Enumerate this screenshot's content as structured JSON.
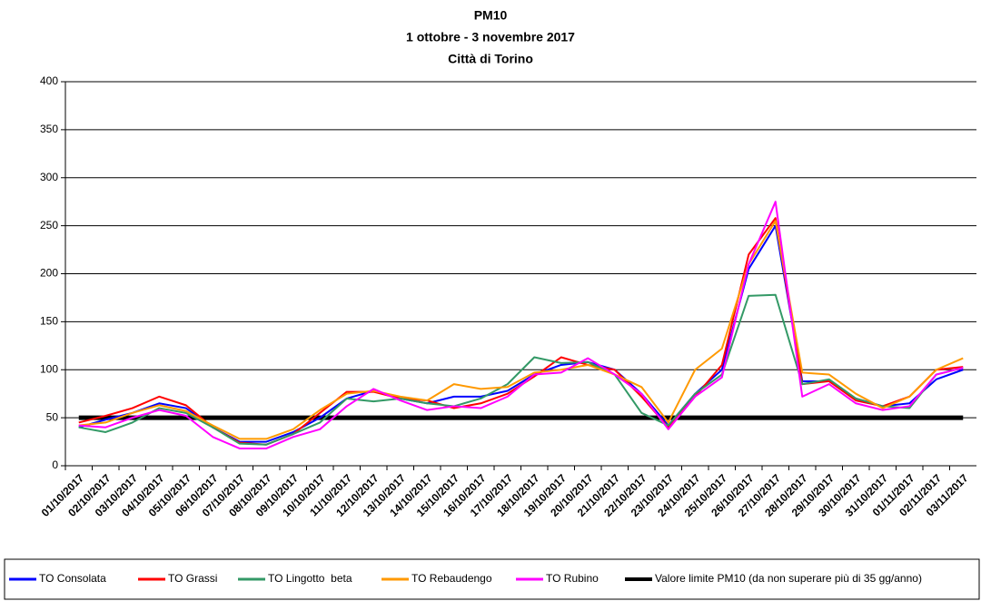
{
  "chart_data": {
    "type": "line",
    "title": "PM10",
    "subtitle": [
      "1 ottobre - 3 novembre 2017",
      "Città di Torino"
    ],
    "categories": [
      "01/10/2017",
      "02/10/2017",
      "03/10/2017",
      "04/10/2017",
      "05/10/2017",
      "06/10/2017",
      "07/10/2017",
      "08/10/2017",
      "09/10/2017",
      "10/10/2017",
      "11/10/2017",
      "12/10/2017",
      "13/10/2017",
      "14/10/2017",
      "15/10/2017",
      "16/10/2017",
      "17/10/2017",
      "18/10/2017",
      "19/10/2017",
      "20/10/2017",
      "21/10/2017",
      "22/10/2017",
      "23/10/2017",
      "24/10/2017",
      "25/10/2017",
      "26/10/2017",
      "27/10/2017",
      "28/10/2017",
      "29/10/2017",
      "30/10/2017",
      "31/10/2017",
      "01/11/2017",
      "02/11/2017",
      "03/11/2017"
    ],
    "series": [
      {
        "name": "TO Consolata",
        "color": "#0000ff",
        "width": 2,
        "values": [
          40,
          48,
          55,
          65,
          60,
          40,
          25,
          25,
          35,
          50,
          70,
          78,
          70,
          65,
          72,
          72,
          78,
          95,
          105,
          108,
          100,
          75,
          42,
          75,
          100,
          205,
          250,
          88,
          88,
          70,
          62,
          65,
          90,
          100
        ]
      },
      {
        "name": "TO Grassi",
        "color": "#ff0000",
        "width": 2,
        "values": [
          45,
          52,
          60,
          72,
          63,
          40,
          24,
          22,
          33,
          55,
          77,
          77,
          70,
          68,
          60,
          65,
          75,
          93,
          113,
          105,
          100,
          72,
          40,
          72,
          105,
          220,
          258,
          85,
          88,
          68,
          62,
          72,
          100,
          103
        ]
      },
      {
        "name": "TO Lingotto  beta",
        "color": "#339966",
        "width": 2,
        "values": [
          40,
          35,
          45,
          60,
          55,
          40,
          23,
          22,
          33,
          45,
          70,
          67,
          70,
          65,
          62,
          70,
          85,
          113,
          107,
          108,
          95,
          55,
          42,
          75,
          95,
          177,
          178,
          85,
          90,
          70,
          62,
          60,
          95,
          102
        ]
      },
      {
        "name": "TO Rebaudengo",
        "color": "#ff9900",
        "width": 2,
        "values": [
          42,
          45,
          55,
          63,
          57,
          42,
          28,
          28,
          38,
          58,
          75,
          78,
          72,
          68,
          85,
          80,
          82,
          97,
          100,
          105,
          95,
          82,
          45,
          100,
          122,
          210,
          255,
          97,
          95,
          75,
          60,
          72,
          100,
          112
        ]
      },
      {
        "name": "TO Rubino",
        "color": "#ff00ff",
        "width": 2,
        "values": [
          42,
          40,
          50,
          58,
          52,
          30,
          18,
          18,
          30,
          38,
          62,
          80,
          68,
          58,
          62,
          60,
          72,
          95,
          97,
          112,
          95,
          75,
          38,
          72,
          92,
          210,
          275,
          72,
          85,
          65,
          58,
          62,
          95,
          102
        ]
      },
      {
        "name": "Valore limite PM10 (da non superare più di 35 gg/anno)",
        "color": "#000000",
        "width": 5,
        "values": [
          50,
          50,
          50,
          50,
          50,
          50,
          50,
          50,
          50,
          50,
          50,
          50,
          50,
          50,
          50,
          50,
          50,
          50,
          50,
          50,
          50,
          50,
          50,
          50,
          50,
          50,
          50,
          50,
          50,
          50,
          50,
          50,
          50,
          50
        ]
      }
    ],
    "ylim": [
      0,
      400
    ],
    "yticks": [
      0,
      50,
      100,
      150,
      200,
      250,
      300,
      350,
      400
    ],
    "grid": true,
    "legend": "bottom"
  }
}
